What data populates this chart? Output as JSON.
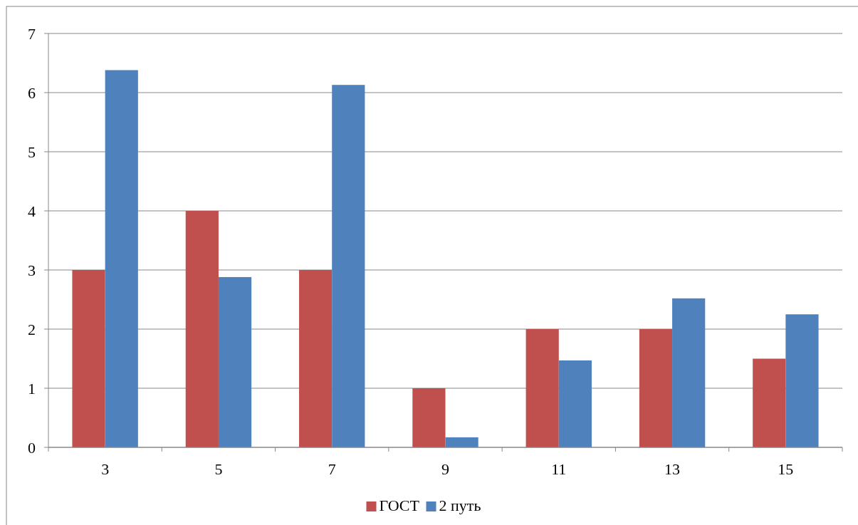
{
  "chart_data": {
    "type": "bar",
    "categories": [
      "3",
      "5",
      "7",
      "9",
      "11",
      "13",
      "15"
    ],
    "series": [
      {
        "name": "ГОСТ",
        "color": "#c0504d",
        "values": [
          3,
          4,
          3,
          1,
          2,
          2,
          1.5
        ]
      },
      {
        "name": "2 путь",
        "color": "#4f81bd",
        "values": [
          6.38,
          2.88,
          6.13,
          0.17,
          1.47,
          2.52,
          2.25
        ]
      }
    ],
    "ylim": [
      0,
      7
    ],
    "yticks": [
      0,
      1,
      2,
      3,
      4,
      5,
      6,
      7
    ],
    "grid": "y",
    "legend": "bottom"
  }
}
